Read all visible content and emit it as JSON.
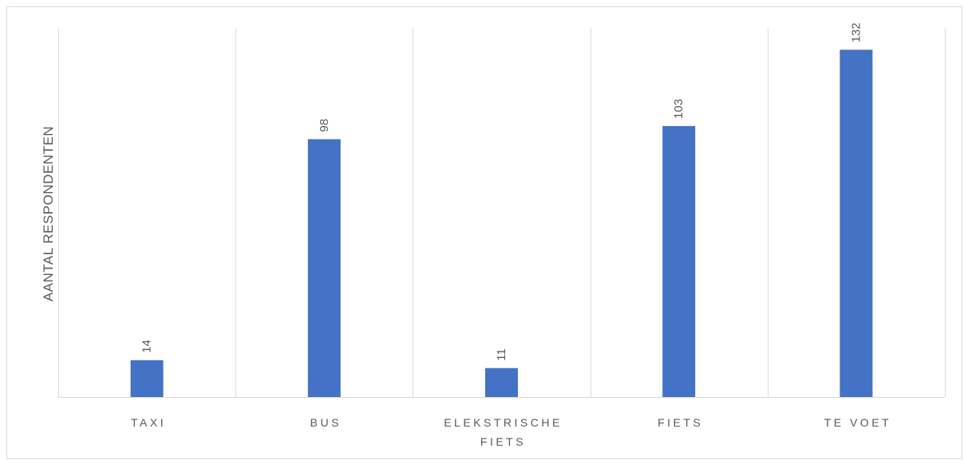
{
  "chart_data": {
    "type": "bar",
    "title": "",
    "xlabel": "",
    "ylabel": "AANTAL RESPONDENTEN",
    "categories": [
      "TAXI",
      "BUS",
      "ELEKSTRISCHE FIETS",
      "FIETS",
      "TE VOET"
    ],
    "category_lines": [
      [
        "TAXI"
      ],
      [
        "BUS"
      ],
      [
        "ELEKSTRISCHE",
        "FIETS"
      ],
      [
        "FIETS"
      ],
      [
        "TE VOET"
      ]
    ],
    "values": [
      14,
      98,
      11,
      103,
      132
    ],
    "data_labels": [
      "14",
      "98",
      "11",
      "103",
      "132"
    ],
    "ylim": [
      0,
      140
    ],
    "grid": "vertical category separators",
    "legend": "none",
    "bar_color": "#4472c4",
    "gridline_color": "#d9d9d9",
    "text_color": "#595959"
  }
}
